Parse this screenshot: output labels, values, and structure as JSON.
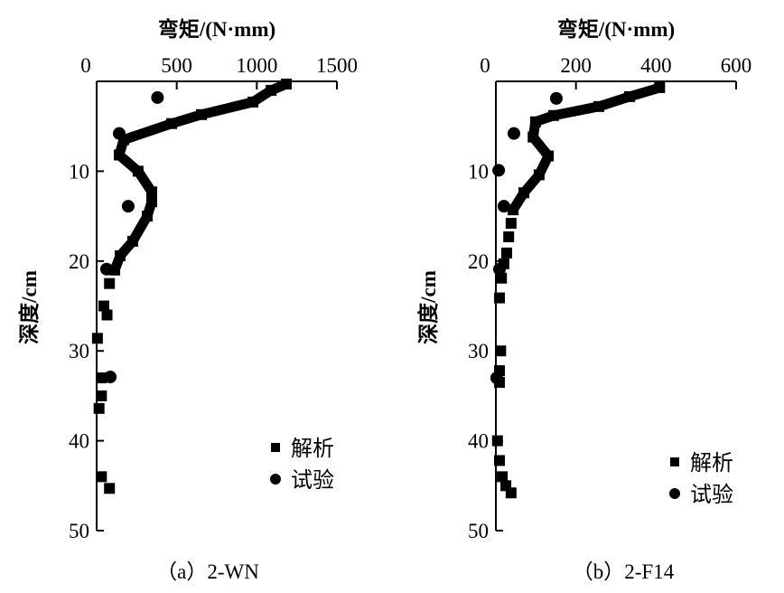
{
  "chart_data": [
    {
      "type": "scatter",
      "caption": "（a）2-WN",
      "xlabel": "弯矩/(N·mm)",
      "ylabel": "深度/cm",
      "xlim": [
        0,
        1500
      ],
      "ylim": [
        0,
        50
      ],
      "y_inverted": true,
      "x_axis_position": "top",
      "xticks": [
        "0",
        "500",
        "1000",
        "1500"
      ],
      "yticks": [
        "10",
        "20",
        "30",
        "40",
        "50"
      ],
      "grid": false,
      "legend_position": "bottom-right",
      "series": [
        {
          "name": "解析",
          "marker": "square",
          "continuous_to_depth": 22,
          "points": [
            [
              1184,
              0.3
            ],
            [
              1089,
              1
            ],
            [
              976,
              2.3
            ],
            [
              654,
              3.7
            ],
            [
              468,
              4.7
            ],
            [
              169,
              6.5
            ],
            [
              141,
              8.2
            ],
            [
              259,
              10
            ],
            [
              344,
              12.3
            ],
            [
              344,
              13.4
            ],
            [
              316,
              15
            ],
            [
              225,
              17.8
            ],
            [
              147,
              19.4
            ],
            [
              113,
              21
            ],
            [
              80,
              22.5
            ],
            [
              45,
              25
            ],
            [
              65,
              26
            ],
            [
              5,
              28.6
            ],
            [
              30,
              33
            ],
            [
              30,
              35
            ],
            [
              15,
              36.4
            ],
            [
              30,
              44
            ],
            [
              80,
              45.3
            ]
          ]
        },
        {
          "name": "试验",
          "marker": "circle",
          "points": [
            [
              380,
              1.8
            ],
            [
              141,
              5.8
            ],
            [
              197,
              13.9
            ],
            [
              62,
              20.9
            ],
            [
              85,
              32.9
            ]
          ]
        }
      ]
    },
    {
      "type": "scatter",
      "caption": "（b）2-F14",
      "xlabel": "弯矩/(N·mm)",
      "ylabel": "深度/cm",
      "xlim": [
        0,
        600
      ],
      "ylim": [
        0,
        50
      ],
      "y_inverted": true,
      "x_axis_position": "top",
      "xticks": [
        "0",
        "200",
        "400",
        "600"
      ],
      "yticks": [
        "10",
        "20",
        "30",
        "40",
        "50"
      ],
      "grid": false,
      "legend_position": "bottom-right",
      "series": [
        {
          "name": "解析",
          "marker": "square",
          "continuous_to_depth": 14.5,
          "points": [
            [
              409,
              0.7
            ],
            [
              334,
              1.7
            ],
            [
              257,
              2.8
            ],
            [
              144,
              3.8
            ],
            [
              99,
              4.5
            ],
            [
              93,
              6.2
            ],
            [
              131,
              8.3
            ],
            [
              108,
              10.4
            ],
            [
              70,
              12.4
            ],
            [
              43,
              14.3
            ],
            [
              38,
              15.8
            ],
            [
              32,
              17.3
            ],
            [
              27,
              19.1
            ],
            [
              20,
              20.3
            ],
            [
              14,
              21.9
            ],
            [
              9,
              24.1
            ],
            [
              12,
              30
            ],
            [
              9,
              32.2
            ],
            [
              9,
              33.5
            ],
            [
              4,
              40
            ],
            [
              9,
              42.2
            ],
            [
              16,
              44
            ],
            [
              25,
              45
            ],
            [
              38,
              45.8
            ]
          ]
        },
        {
          "name": "试验",
          "marker": "circle",
          "points": [
            [
              151,
              1.9
            ],
            [
              45,
              5.8
            ],
            [
              7,
              9.9
            ],
            [
              20,
              13.9
            ],
            [
              9,
              20.9
            ],
            [
              2,
              33
            ]
          ]
        }
      ]
    }
  ]
}
